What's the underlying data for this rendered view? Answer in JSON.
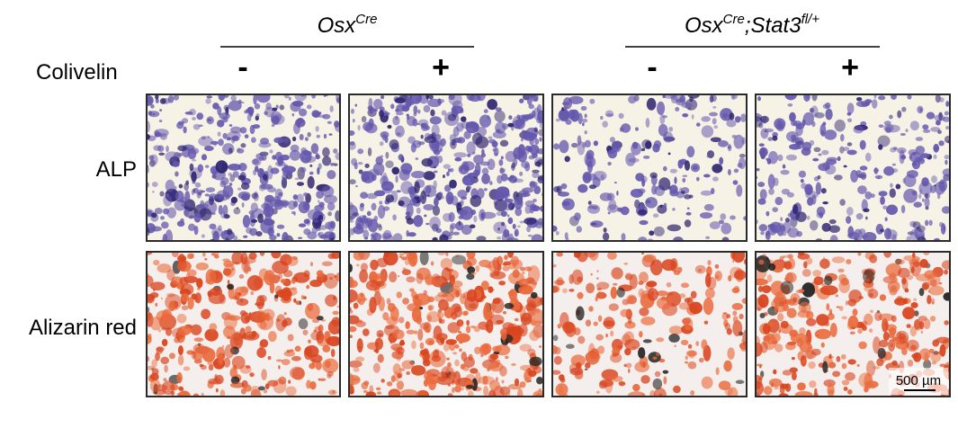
{
  "header": {
    "groups": [
      {
        "name": "Osx",
        "superscript": "Cre"
      },
      {
        "name": "Osx",
        "superscript": "Cre",
        "suffix": ";Stat3",
        "suffix_superscript": "fl/+"
      }
    ]
  },
  "treatment": {
    "label": "Colivelin",
    "conditions": [
      "-",
      "+",
      "-",
      "+"
    ]
  },
  "rows": [
    "ALP",
    "Alizarin red"
  ],
  "scale_bar": "500 µm"
}
